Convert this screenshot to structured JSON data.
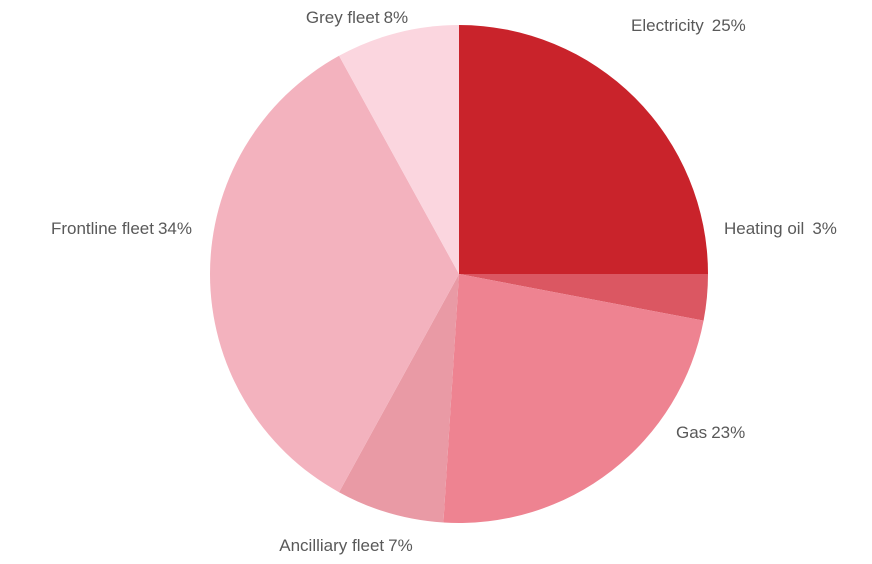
{
  "chart_data": {
    "type": "pie",
    "categories": [
      "Electricity",
      "Heating oil",
      "Gas",
      "Ancilliary fleet",
      "Frontline fleet",
      "Grey fleet"
    ],
    "values": [
      25,
      3,
      23,
      7,
      34,
      8
    ],
    "value_labels": [
      "25%",
      "3%",
      "23%",
      "7%",
      "34%",
      "8%"
    ],
    "colors": [
      "#c9232b",
      "#db5762",
      "#ee8391",
      "#e99aa5",
      "#f3b2be",
      "#fbd6df"
    ]
  }
}
